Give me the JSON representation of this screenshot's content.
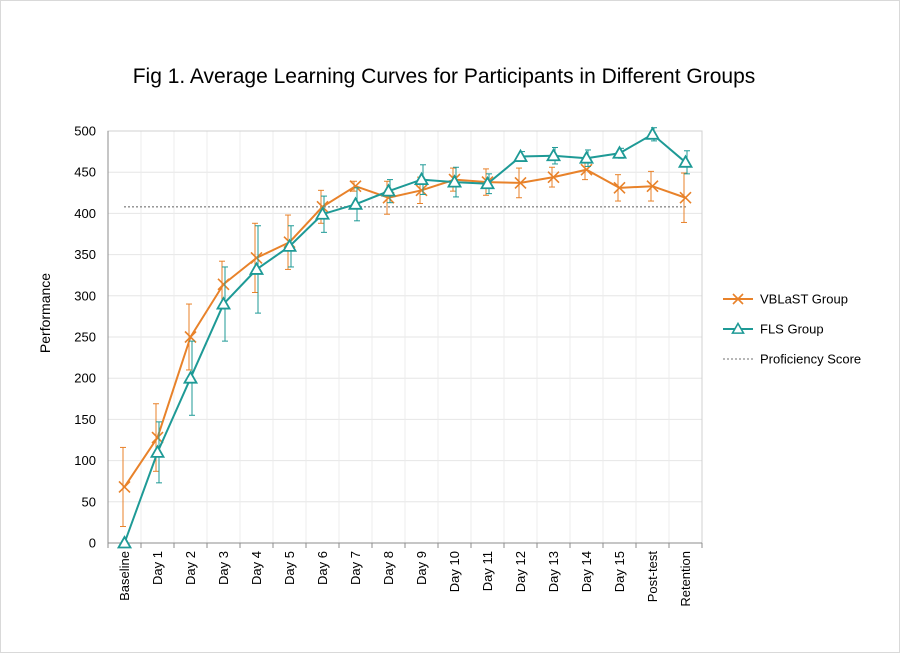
{
  "chart_data": {
    "type": "line",
    "title": "Fig 1. Average Learning Curves for Participants in Different Groups",
    "xlabel": "",
    "ylabel": "Performance",
    "ylim": [
      0,
      500
    ],
    "yticks": [
      0,
      50,
      100,
      150,
      200,
      250,
      300,
      350,
      400,
      450,
      500
    ],
    "grid": true,
    "legend_position": "right",
    "categories": [
      "Baseline",
      "Day 1",
      "Day 2",
      "Day 3",
      "Day 4",
      "Day 5",
      "Day 6",
      "Day 7",
      "Day 8",
      "Day 9",
      "Day 10",
      "Day 11",
      "Day 12",
      "Day 13",
      "Day 14",
      "Day 15",
      "Post-test",
      "Retention"
    ],
    "series": [
      {
        "name": "VBLaST Group",
        "color": "#e8822a",
        "marker": "x",
        "values": [
          68,
          128,
          250,
          314,
          346,
          365,
          408,
          433,
          419,
          428,
          441,
          438,
          437,
          444,
          453,
          431,
          433,
          419
        ],
        "errors": [
          48,
          41,
          40,
          28,
          42,
          33,
          20,
          6,
          20,
          16,
          14,
          16,
          18,
          12,
          12,
          16,
          18,
          30
        ]
      },
      {
        "name": "FLS Group",
        "color": "#1e9a96",
        "marker": "triangle",
        "values": [
          0,
          110,
          200,
          290,
          332,
          360,
          399,
          411,
          427,
          441,
          438,
          436,
          469,
          470,
          467,
          473,
          496,
          462
        ],
        "errors": [
          0,
          37,
          45,
          45,
          53,
          25,
          22,
          20,
          14,
          18,
          18,
          12,
          6,
          10,
          10,
          6,
          8,
          14
        ]
      }
    ],
    "reference_line": {
      "name": "Proficiency Score",
      "value": 408,
      "color": "#8c8c8c",
      "style": "dotted"
    }
  }
}
